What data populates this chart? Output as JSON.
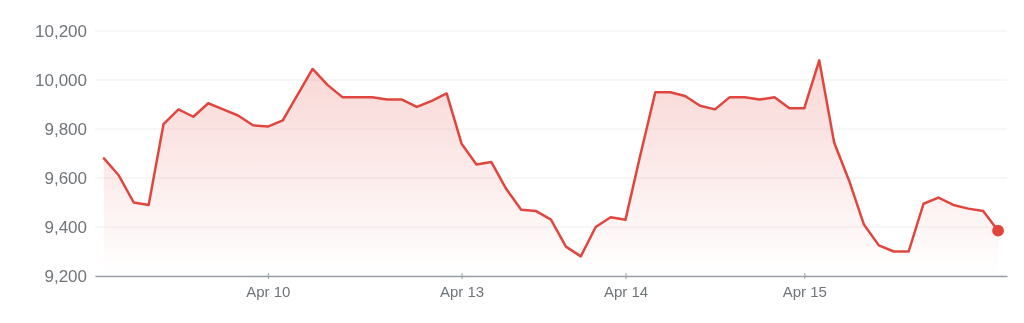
{
  "chart_data": {
    "type": "area",
    "categories": [
      null,
      null,
      null,
      null,
      null,
      null,
      null,
      null,
      null,
      null,
      null,
      "Apr 10",
      null,
      null,
      null,
      null,
      null,
      null,
      null,
      null,
      null,
      null,
      null,
      null,
      "Apr 13",
      null,
      null,
      null,
      null,
      null,
      null,
      null,
      null,
      null,
      null,
      "Apr 14",
      null,
      null,
      null,
      null,
      null,
      null,
      null,
      null,
      null,
      null,
      null,
      "Apr 15",
      null,
      null,
      null,
      null,
      null,
      null,
      null,
      null,
      null,
      null,
      null,
      null,
      null
    ],
    "series": [
      {
        "color": "#e0463e",
        "values": [
          9680,
          9610,
          9500,
          9490,
          9820,
          9880,
          9850,
          9905,
          9880,
          9855,
          9815,
          9810,
          9835,
          9940,
          10045,
          9980,
          9930,
          9930,
          9930,
          9920,
          9920,
          9890,
          9915,
          9945,
          9740,
          9655,
          9665,
          9555,
          9470,
          9465,
          9430,
          9320,
          9280,
          9400,
          9440,
          9430,
          9695,
          9950,
          9950,
          9935,
          9895,
          9880,
          9930,
          9930,
          9920,
          9930,
          9885,
          9885,
          10080,
          9745,
          9590,
          9410,
          9325,
          9300,
          9300,
          9495,
          9520,
          9490,
          9475,
          9465,
          9385
        ]
      },
      {
        "type": "scatter",
        "color": "#e0463e",
        "marker": "circle",
        "values": [
          null,
          null,
          null,
          null,
          null,
          null,
          null,
          null,
          null,
          null,
          null,
          null,
          null,
          null,
          null,
          null,
          null,
          null,
          null,
          null,
          null,
          null,
          null,
          null,
          null,
          null,
          null,
          null,
          null,
          null,
          null,
          null,
          null,
          null,
          null,
          null,
          null,
          null,
          null,
          null,
          null,
          null,
          null,
          null,
          null,
          null,
          null,
          null,
          null,
          null,
          null,
          null,
          null,
          null,
          null,
          null,
          null,
          null,
          null,
          null,
          9385
        ]
      }
    ],
    "ylim": [
      9200,
      10200
    ],
    "yticks": [
      {
        "value": 9200,
        "label": "9,200"
      },
      {
        "value": 9400,
        "label": "9,400"
      },
      {
        "value": 9600,
        "label": "9,600"
      },
      {
        "value": 9800,
        "label": "9,800"
      },
      {
        "value": 10000,
        "label": "10,000"
      },
      {
        "value": 10200,
        "label": "10,200"
      }
    ],
    "grid": "y"
  }
}
